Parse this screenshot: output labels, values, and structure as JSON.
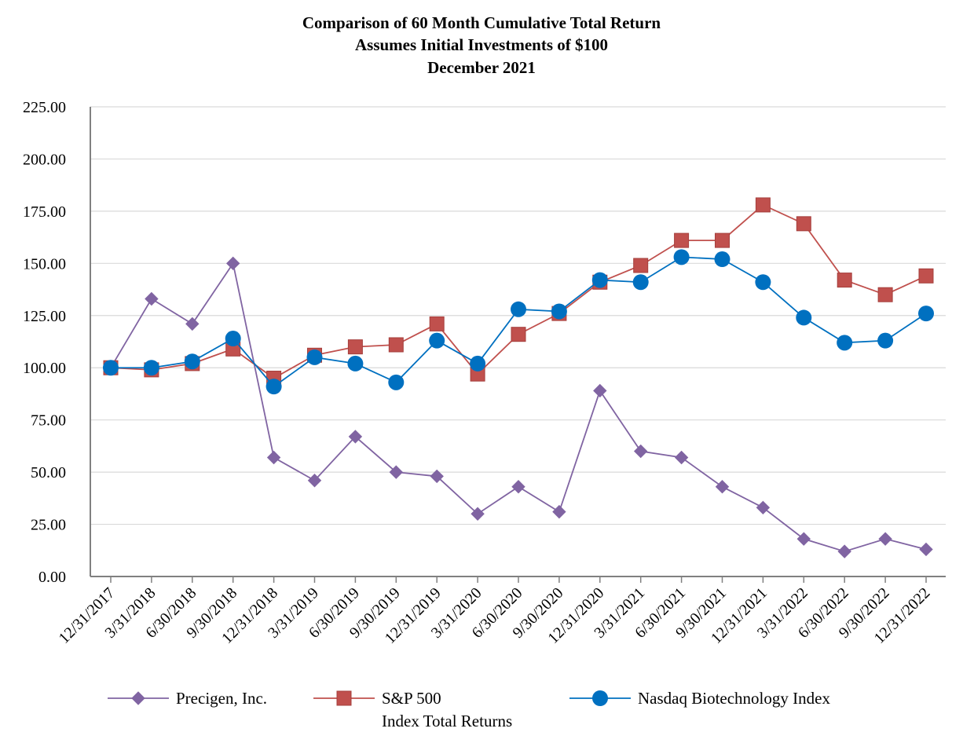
{
  "chart_data": {
    "type": "line",
    "title": [
      "Comparison of 60 Month Cumulative Total Return",
      "Assumes Initial Investments of $100",
      "December 2021"
    ],
    "xlabel": "",
    "ylabel": "",
    "ylim": [
      0,
      225
    ],
    "yticks": [
      "0.00",
      "25.00",
      "50.00",
      "75.00",
      "100.00",
      "125.00",
      "150.00",
      "175.00",
      "200.00",
      "225.00"
    ],
    "grid": true,
    "legend_position": "bottom",
    "categories": [
      "12/31/2017",
      "3/31/2018",
      "6/30/2018",
      "9/30/2018",
      "12/31/2018",
      "3/31/2019",
      "6/30/2019",
      "9/30/2019",
      "12/31/2019",
      "3/31/2020",
      "6/30/2020",
      "9/30/2020",
      "12/31/2020",
      "3/31/2021",
      "6/30/2021",
      "9/30/2021",
      "12/31/2021",
      "3/31/2022",
      "6/30/2022",
      "9/30/2022",
      "12/31/2022"
    ],
    "series": [
      {
        "name": "Precigen, Inc.",
        "legend_lines": [
          "Precigen, Inc."
        ],
        "color": "#8064a2",
        "marker": "diamond",
        "values": [
          100,
          133,
          121,
          150,
          57,
          46,
          67,
          50,
          48,
          30,
          43,
          31,
          89,
          60,
          57,
          43,
          33,
          18,
          12,
          18,
          13
        ]
      },
      {
        "name": "S&P 500 Index Total Returns",
        "legend_lines": [
          "S&P 500",
          "Index Total Returns"
        ],
        "color": "#c0504d",
        "marker": "square",
        "values": [
          100,
          99,
          102,
          109,
          95,
          106,
          110,
          111,
          121,
          97,
          116,
          126,
          141,
          149,
          161,
          161,
          178,
          169,
          142,
          135,
          144
        ]
      },
      {
        "name": "Nasdaq Biotechnology Index",
        "legend_lines": [
          "Nasdaq Biotechnology Index"
        ],
        "color": "#0070c0",
        "marker": "circle",
        "values": [
          100,
          100,
          103,
          114,
          91,
          105,
          102,
          93,
          113,
          102,
          128,
          127,
          142,
          141,
          153,
          152,
          141,
          124,
          112,
          113,
          126
        ]
      }
    ]
  }
}
